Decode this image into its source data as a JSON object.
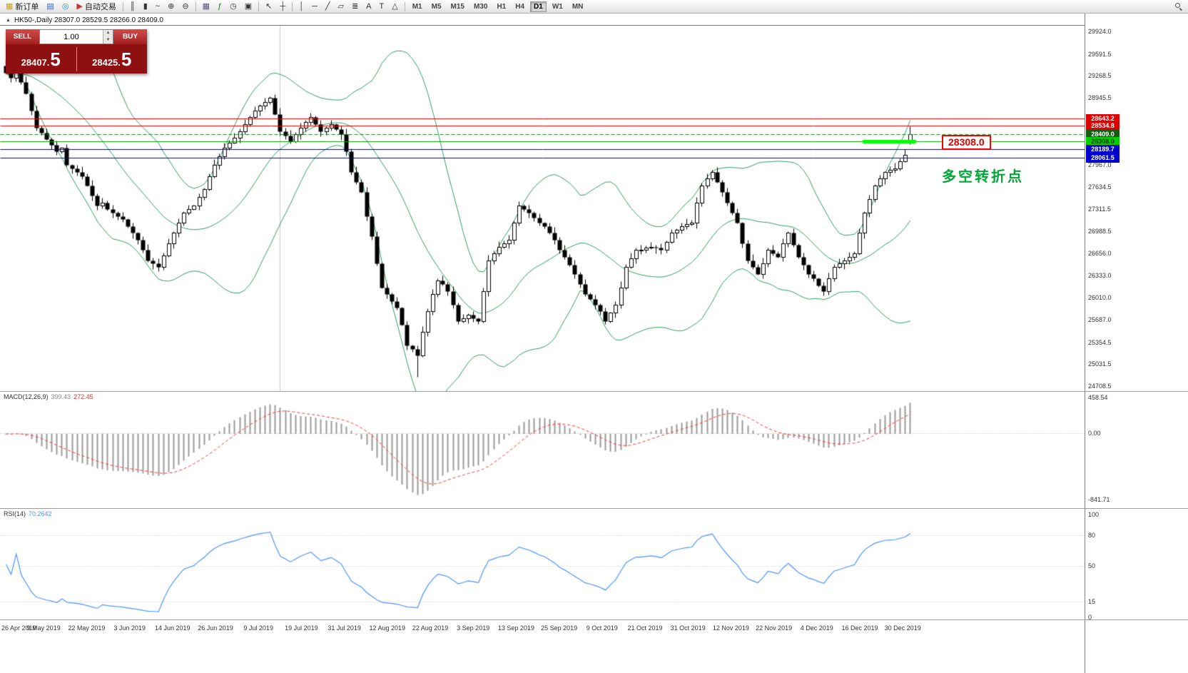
{
  "toolbar": {
    "groups": [
      {
        "items": [
          {
            "name": "new-order-button",
            "icon": "new-order-icon",
            "glyph": "▦",
            "color": "#c8a415",
            "label": "新订单"
          },
          {
            "name": "market-watch-button",
            "icon": "market-watch-icon",
            "glyph": "▤",
            "color": "#2f66c4"
          },
          {
            "name": "navigator-button",
            "icon": "navigator-icon",
            "glyph": "◎",
            "color": "#2f8ac4"
          },
          {
            "name": "auto-trading-button",
            "icon": "auto-trading-icon",
            "glyph": "▶",
            "color": "#d03030",
            "label": "自动交易"
          }
        ]
      },
      {
        "items": [
          {
            "name": "bar-chart-button",
            "icon": "bar-chart-icon",
            "glyph": "║",
            "color": "#333333"
          },
          {
            "name": "candlestick-chart-button",
            "icon": "candlestick-chart-icon",
            "glyph": "▮",
            "color": "#333333"
          },
          {
            "name": "line-chart-button",
            "icon": "line-chart-icon",
            "glyph": "~",
            "color": "#333333"
          },
          {
            "name": "zoom-in-button",
            "icon": "zoom-in-icon",
            "glyph": "⊕",
            "color": "#333333"
          },
          {
            "name": "zoom-out-button",
            "icon": "zoom-out-icon",
            "glyph": "⊖",
            "color": "#333333"
          }
        ]
      },
      {
        "items": [
          {
            "name": "tile-windows-button",
            "icon": "tile-windows-icon",
            "glyph": "▦",
            "color": "#555577"
          },
          {
            "name": "indicators-button",
            "icon": "indicators-icon",
            "glyph": "ƒ",
            "color": "#0a8a0a"
          },
          {
            "name": "periods-button",
            "icon": "periods-icon",
            "glyph": "◷",
            "color": "#333333"
          },
          {
            "name": "templates-button",
            "icon": "templates-icon",
            "glyph": "▣",
            "color": "#333333"
          }
        ]
      },
      {
        "items": [
          {
            "name": "cursor-button",
            "icon": "cursor-icon",
            "glyph": "↖",
            "color": "#333333"
          },
          {
            "name": "crosshair-button",
            "icon": "crosshair-icon",
            "glyph": "┼",
            "color": "#333333"
          }
        ]
      },
      {
        "items": [
          {
            "name": "vertical-line-button",
            "icon": "vertical-line-icon",
            "glyph": "│",
            "color": "#333333"
          },
          {
            "name": "horizontal-line-button",
            "icon": "horizontal-line-icon",
            "glyph": "─",
            "color": "#333333"
          },
          {
            "name": "trendline-button",
            "icon": "trendline-icon",
            "glyph": "╱",
            "color": "#333333"
          },
          {
            "name": "channel-button",
            "icon": "channel-icon",
            "glyph": "▱",
            "color": "#333333"
          },
          {
            "name": "fibonacci-button",
            "icon": "fibonacci-icon",
            "glyph": "≣",
            "color": "#333333"
          },
          {
            "name": "text-button",
            "icon": "text-icon",
            "glyph": "A",
            "color": "#333333"
          },
          {
            "name": "label-button",
            "icon": "label-icon",
            "glyph": "T",
            "color": "#333333"
          },
          {
            "name": "shapes-button",
            "icon": "shapes-icon",
            "glyph": "△",
            "color": "#333333"
          }
        ]
      }
    ],
    "timeframes": [
      "M1",
      "M5",
      "M15",
      "M30",
      "H1",
      "H4",
      "D1",
      "W1",
      "MN"
    ],
    "active_timeframe": "D1"
  },
  "chart": {
    "collapse_arrow": "▲",
    "title": "HK50-,Daily  28307.0 28529.5 28266.0 28409.0",
    "price_callout": "28308.0",
    "annotation": "多空转折点"
  },
  "order_panel": {
    "sell_label": "SELL",
    "buy_label": "BUY",
    "volume": "1.00",
    "spin_up_glyph": "▲",
    "spin_down_glyph": "▼",
    "sell_price_small": "28407.",
    "sell_price_large": "5",
    "buy_price_small": "28425.",
    "buy_price_large": "5"
  },
  "macd_panel": {
    "label": "MACD(12,26,9)",
    "value_main": "399.43",
    "value_signal": "272.45",
    "y_tick_labels": [
      "458.54",
      "0.00",
      "-841.71"
    ]
  },
  "rsi_panel": {
    "label": "RSI(14)",
    "value": "70.2642",
    "y_tick_labels": [
      "100",
      "80",
      "50",
      "15",
      "0"
    ]
  },
  "chart_data": [
    {
      "type": "candlestick",
      "symbol": "HK50-",
      "timeframe": "Daily",
      "first_open": 29420,
      "closes": [
        29310,
        29240,
        29420,
        29180,
        29010,
        28760,
        28510,
        28430,
        28340,
        28260,
        28160,
        28210,
        27960,
        27910,
        27860,
        27790,
        27660,
        27510,
        27360,
        27410,
        27310,
        27260,
        27210,
        27160,
        27060,
        26960,
        26860,
        26710,
        26560,
        26510,
        26460,
        26630,
        26810,
        26960,
        27110,
        27260,
        27310,
        27360,
        27490,
        27610,
        27790,
        27960,
        28090,
        28210,
        28290,
        28360,
        28460,
        28560,
        28660,
        28760,
        28830,
        28890,
        28950,
        28710,
        28460,
        28390,
        28310,
        28410,
        28510,
        28590,
        28660,
        28560,
        28460,
        28510,
        28560,
        28490,
        28410,
        28160,
        27860,
        27710,
        27560,
        27210,
        26910,
        26510,
        26160,
        26060,
        25960,
        25860,
        25610,
        25310,
        25260,
        25160,
        25510,
        25810,
        26060,
        26260,
        26210,
        26110,
        25910,
        25660,
        25710,
        25760,
        25710,
        25660,
        26110,
        26560,
        26660,
        26760,
        26810,
        26860,
        27110,
        27360,
        27310,
        27260,
        27190,
        27110,
        27060,
        26960,
        26860,
        26710,
        26610,
        26490,
        26360,
        26210,
        26060,
        25990,
        25910,
        25810,
        25660,
        25790,
        25910,
        26160,
        26460,
        26590,
        26710,
        26710,
        26740,
        26760,
        26740,
        26710,
        26830,
        26960,
        27010,
        27060,
        27090,
        27110,
        27410,
        27660,
        27760,
        27860,
        27710,
        27560,
        27410,
        27260,
        27110,
        26810,
        26560,
        26460,
        26360,
        26510,
        26710,
        26660,
        26610,
        26810,
        26960,
        26790,
        26610,
        26490,
        26360,
        26290,
        26190,
        26110,
        26290,
        26460,
        26510,
        26560,
        26610,
        26660,
        26960,
        27260,
        27460,
        27660,
        27760,
        27860,
        27890,
        27910,
        28010,
        28110,
        28409
      ],
      "last_bar": {
        "open": 28307.0,
        "high": 28529.5,
        "low": 28266.0,
        "close": 28409.0
      },
      "high_overrides": {
        "0": 29500,
        "2": 29560
      },
      "low_overrides": {
        "81": 24850
      },
      "y_range": [
        24636,
        30186
      ],
      "y_ticks": [
        29924.0,
        29591.5,
        29268.5,
        28945.5,
        27967.0,
        27634.5,
        27311.5,
        26988.5,
        26656.0,
        26333.0,
        26010.0,
        25687.0,
        25354.5,
        25031.5,
        24708.5
      ],
      "x_labels": [
        "26 Apr 2019",
        "9 May 2019",
        "22 May 2019",
        "3 Jun 2019",
        "14 Jun 2019",
        "26 Jun 2019",
        "9 Jul 2019",
        "19 Jul 2019",
        "31 Jul 2019",
        "12 Aug 2019",
        "22 Aug 2019",
        "3 Sep 2019",
        "13 Sep 2019",
        "25 Sep 2019",
        "9 Oct 2019",
        "21 Oct 2019",
        "31 Oct 2019",
        "12 Nov 2019",
        "22 Nov 2019",
        "4 Dec 2019",
        "16 Dec 2019",
        "30 Dec 2019"
      ],
      "bollinger": {
        "period": 20,
        "deviation": 2,
        "color": "#2f9e5f"
      },
      "levels": [
        {
          "price": 28643.2,
          "label": "28643.2",
          "color": "#dd0000",
          "style": "solid",
          "badge_bg": "#dd0000",
          "badge_fg": "#ffffff"
        },
        {
          "price": 28534.8,
          "label": "28534.8",
          "color": "#dd0000",
          "style": "solid",
          "badge_bg": "#dd0000",
          "badge_fg": "#ffffff"
        },
        {
          "price": 28409.0,
          "label": "28409.0",
          "color": "#1a7a1a",
          "style": "dashed",
          "badge_bg": "#155c15",
          "badge_fg": "#ffffff"
        },
        {
          "price": 28308.0,
          "label": "28308.0",
          "color": "#00a000",
          "style": "solid",
          "badge_bg": "#00cc00",
          "badge_fg": "#003300"
        },
        {
          "price": 28189.7,
          "label": "28189.7",
          "color": "#0000cc",
          "style": "solid",
          "badge_bg": "#0000cc",
          "badge_fg": "#ffffff"
        },
        {
          "price": 28061.5,
          "label": "28061.5",
          "color": "#0000cc",
          "style": "solid",
          "badge_bg": "#0000cc",
          "badge_fg": "#ffffff"
        }
      ],
      "highlight_segment": {
        "price": 28308.0,
        "from_index": 169,
        "to_index": 178,
        "color": "#00ff00",
        "width": 5
      },
      "vertical_line_index": 54,
      "up_color": "#ffffff",
      "down_color": "#000000",
      "wick_color": "#000000"
    },
    {
      "type": "bar",
      "name": "MACD",
      "params": {
        "fast": 12,
        "slow": 26,
        "signal": 9
      },
      "source": "closes of chart_data[0]",
      "current": {
        "macd": 399.43,
        "signal": 272.45
      },
      "y_range": [
        -951,
        540
      ],
      "y_ticks": [
        458.54,
        0,
        -841.71
      ],
      "histogram_color": "#9a9a9a",
      "signal_color": "#ff3333"
    },
    {
      "type": "line",
      "name": "RSI",
      "period": 14,
      "source": "closes of chart_data[0]",
      "current": 70.2642,
      "y_range": [
        -2,
        106
      ],
      "y_ticks": [
        100,
        80,
        50,
        15,
        0
      ],
      "levels": [
        80,
        50,
        15
      ],
      "line_color": "#4d94ff"
    }
  ]
}
